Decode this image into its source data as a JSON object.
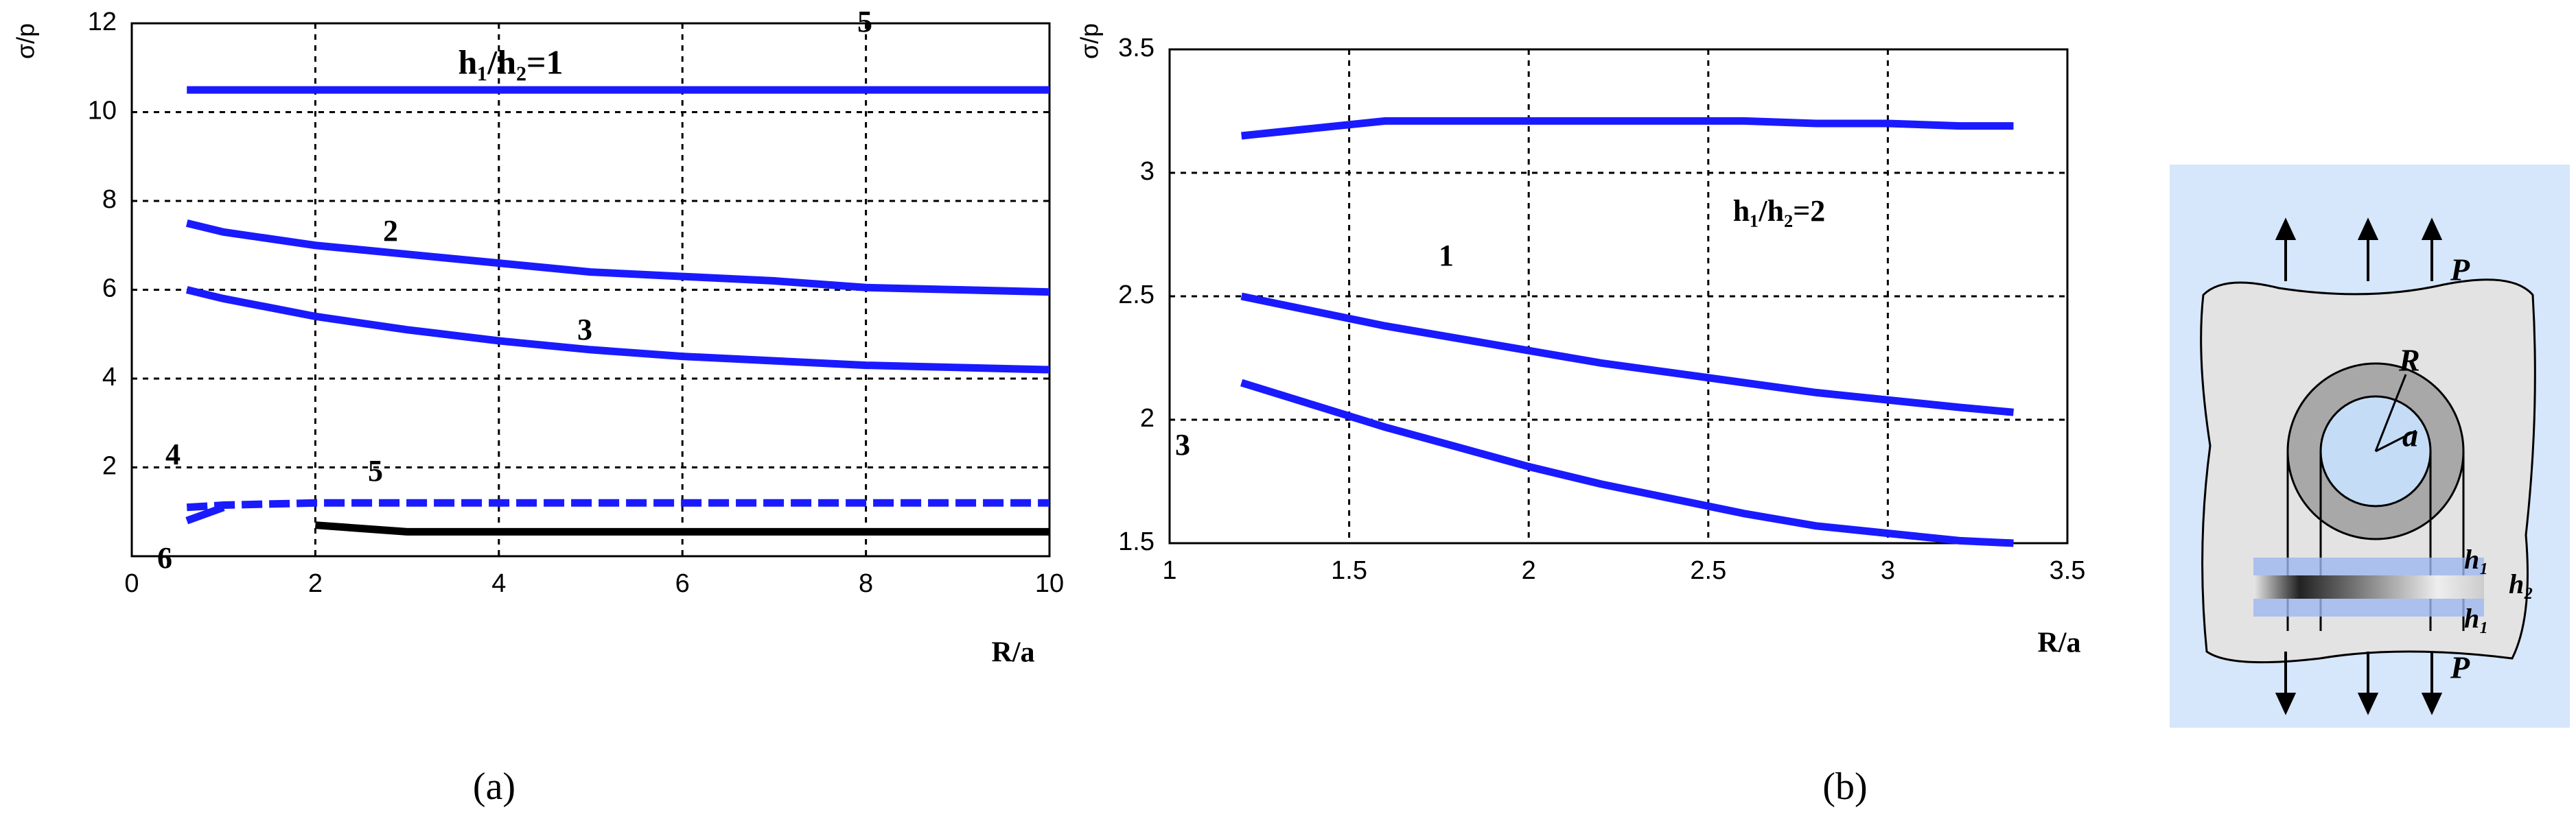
{
  "chart_data": [
    {
      "type": "line",
      "ylabel": "σ/p",
      "xlabel": "R/a",
      "annotation": "h₁/h₂=1",
      "caption": "(a)",
      "grid": true,
      "x": [
        0.6,
        1,
        2,
        3,
        4,
        5,
        6,
        7,
        8,
        9,
        10
      ],
      "xlim": [
        0,
        10
      ],
      "xticks": [
        0,
        2,
        4,
        6,
        8,
        10
      ],
      "ylim": [
        0,
        12
      ],
      "yticks": [
        2,
        4,
        6,
        8,
        10,
        12
      ],
      "series": [
        {
          "name": "5",
          "color": "#1a1aff",
          "values": [
            10.5,
            10.5,
            10.5,
            10.5,
            10.5,
            10.5,
            10.5,
            10.5,
            10.5,
            10.5,
            10.5
          ]
        },
        {
          "name": "2",
          "color": "#1a1aff",
          "values": [
            7.5,
            7.3,
            7.0,
            6.8,
            6.6,
            6.4,
            6.3,
            6.2,
            6.05,
            6.0,
            5.95
          ]
        },
        {
          "name": "3",
          "color": "#1a1aff",
          "values": [
            6.0,
            5.8,
            5.4,
            5.1,
            4.85,
            4.65,
            4.5,
            4.4,
            4.3,
            4.25,
            4.2
          ]
        },
        {
          "name": "4",
          "color": "#1a1aff",
          "values": [
            0.8,
            1.1,
            null,
            null,
            null,
            null,
            null,
            null,
            null,
            null,
            null
          ]
        },
        {
          "name": "5",
          "color": "#1a1aff",
          "dashed": true,
          "values": [
            1.1,
            1.15,
            1.2,
            1.2,
            1.2,
            1.2,
            1.2,
            1.2,
            1.2,
            1.2,
            1.2
          ]
        },
        {
          "name": "6",
          "color": "#000000",
          "values": [
            null,
            null,
            0.7,
            0.55,
            0.55,
            0.55,
            0.55,
            0.55,
            0.55,
            0.55,
            0.55
          ]
        }
      ]
    },
    {
      "type": "line",
      "ylabel": "σ/p",
      "xlabel": "R/a",
      "caption": "(b)",
      "grid": true,
      "x": [
        1.2,
        1.4,
        1.6,
        1.8,
        2.0,
        2.2,
        2.4,
        2.6,
        2.8,
        3.0,
        3.2,
        3.35
      ],
      "xlim": [
        1,
        3.5
      ],
      "xticks": [
        1,
        1.5,
        2,
        2.5,
        3,
        3.5
      ],
      "ylim": [
        1.5,
        3.5
      ],
      "yticks": [
        1.5,
        2,
        2.5,
        3,
        3.5
      ],
      "series": [
        {
          "name": "1",
          "color": "#1a1aff",
          "values": [
            3.15,
            3.18,
            3.21,
            3.21,
            3.21,
            3.21,
            3.21,
            3.21,
            3.2,
            3.2,
            3.19,
            3.19
          ]
        },
        {
          "name": "h₁/h₂=2",
          "color": "#1a1aff",
          "values": [
            2.5,
            2.44,
            2.38,
            2.33,
            2.28,
            2.23,
            2.19,
            2.15,
            2.11,
            2.08,
            2.05,
            2.03
          ]
        },
        {
          "name": "3",
          "color": "#1a1aff",
          "values": [
            2.15,
            2.06,
            1.97,
            1.89,
            1.81,
            1.74,
            1.68,
            1.62,
            1.57,
            1.54,
            1.51,
            1.5
          ]
        }
      ]
    }
  ],
  "diagram": {
    "load_top": "P",
    "load_bottom": "P",
    "outer_radius": "R",
    "inner_radius": "a",
    "layer_top": "h₁",
    "layer_middle": "h₂",
    "layer_bottom": "h₁"
  }
}
